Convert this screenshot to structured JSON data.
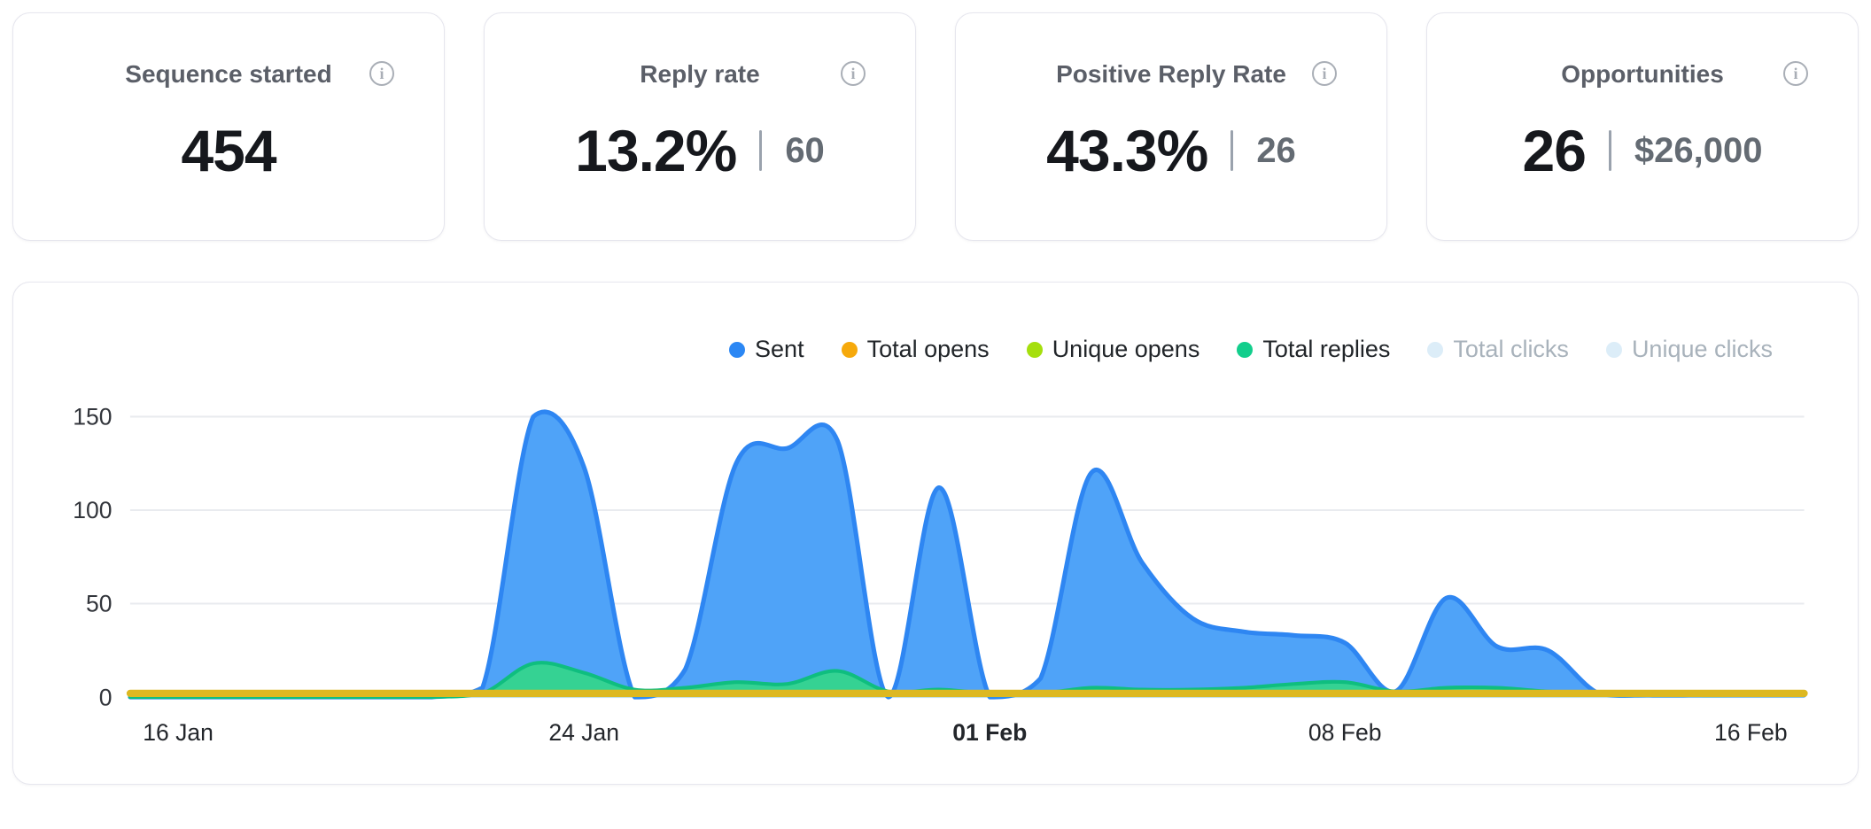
{
  "stats": {
    "cards": [
      {
        "title": "Sequence started",
        "value": "454",
        "secondary": ""
      },
      {
        "title": "Reply rate",
        "value": "13.2%",
        "secondary": "60"
      },
      {
        "title": "Positive Reply Rate",
        "value": "43.3%",
        "secondary": "26"
      },
      {
        "title": "Opportunities",
        "value": "26",
        "secondary": "$26,000"
      }
    ]
  },
  "chart": {
    "legend": [
      {
        "label": "Sent",
        "color": "#2B87F4",
        "enabled": true
      },
      {
        "label": "Total opens",
        "color": "#F6A90B",
        "enabled": true
      },
      {
        "label": "Unique opens",
        "color": "#A5DF0D",
        "enabled": true
      },
      {
        "label": "Total replies",
        "color": "#12CE8C",
        "enabled": true
      },
      {
        "label": "Total clicks",
        "color": "#DCEDF8",
        "enabled": false
      },
      {
        "label": "Unique clicks",
        "color": "#DCEDF8",
        "enabled": false
      }
    ]
  },
  "chart_data": {
    "type": "area",
    "title": "",
    "ylim": [
      0,
      150
    ],
    "y_ticks": [
      0,
      50,
      100,
      150
    ],
    "grid": true,
    "legend_position": "top-right",
    "x_ticks": [
      {
        "label": "16 Jan",
        "day": 0,
        "bold": false
      },
      {
        "label": "24 Jan",
        "day": 8,
        "bold": false
      },
      {
        "label": "01 Feb",
        "day": 16,
        "bold": true
      },
      {
        "label": "08 Feb",
        "day": 23,
        "bold": false
      },
      {
        "label": "16 Feb",
        "day": 31,
        "bold": false
      }
    ],
    "series": [
      {
        "name": "Sent",
        "color": "#2E86F2",
        "fill": "#4FA3F8",
        "stroke_width": 5,
        "values": [
          0,
          0,
          0,
          0,
          0,
          0,
          5,
          150,
          123,
          0,
          15,
          125,
          133,
          137,
          0,
          112,
          0,
          10,
          120,
          72,
          42,
          35,
          33,
          29,
          3,
          53,
          27,
          25,
          2,
          1,
          1,
          1
        ]
      },
      {
        "name": "Total replies",
        "color": "#0FBE7F",
        "fill": "#35D293",
        "stroke_width": 4,
        "values": [
          0,
          0,
          0,
          0,
          0,
          0,
          2,
          18,
          13,
          4,
          5,
          8,
          7,
          14,
          3,
          4,
          2,
          2,
          5,
          4,
          4,
          5,
          7,
          8,
          3,
          5,
          5,
          3,
          2,
          2,
          1,
          1
        ]
      },
      {
        "name": "Unique opens",
        "color": "#A9DD1C",
        "stroke_width": 3,
        "values": [
          1,
          1,
          1,
          1,
          1,
          1,
          1,
          1,
          1,
          1,
          1,
          1,
          1,
          1,
          1,
          1,
          1,
          1,
          1,
          1,
          1,
          1,
          1,
          1,
          1,
          1,
          1,
          1,
          1,
          1,
          1,
          1
        ]
      },
      {
        "name": "Total opens",
        "color": "#DDB821",
        "stroke_width": 8,
        "values": [
          2,
          2,
          2,
          2,
          2,
          2,
          2,
          2,
          2,
          2,
          2,
          2,
          2,
          2,
          2,
          2,
          2,
          2,
          2,
          2,
          2,
          2,
          2,
          2,
          2,
          2,
          2,
          2,
          2,
          2,
          2,
          2
        ]
      },
      {
        "name": "Total clicks",
        "color": "#DCEDF8",
        "enabled": false,
        "values": null
      },
      {
        "name": "Unique clicks",
        "color": "#DCEDF8",
        "enabled": false,
        "values": null
      }
    ]
  }
}
